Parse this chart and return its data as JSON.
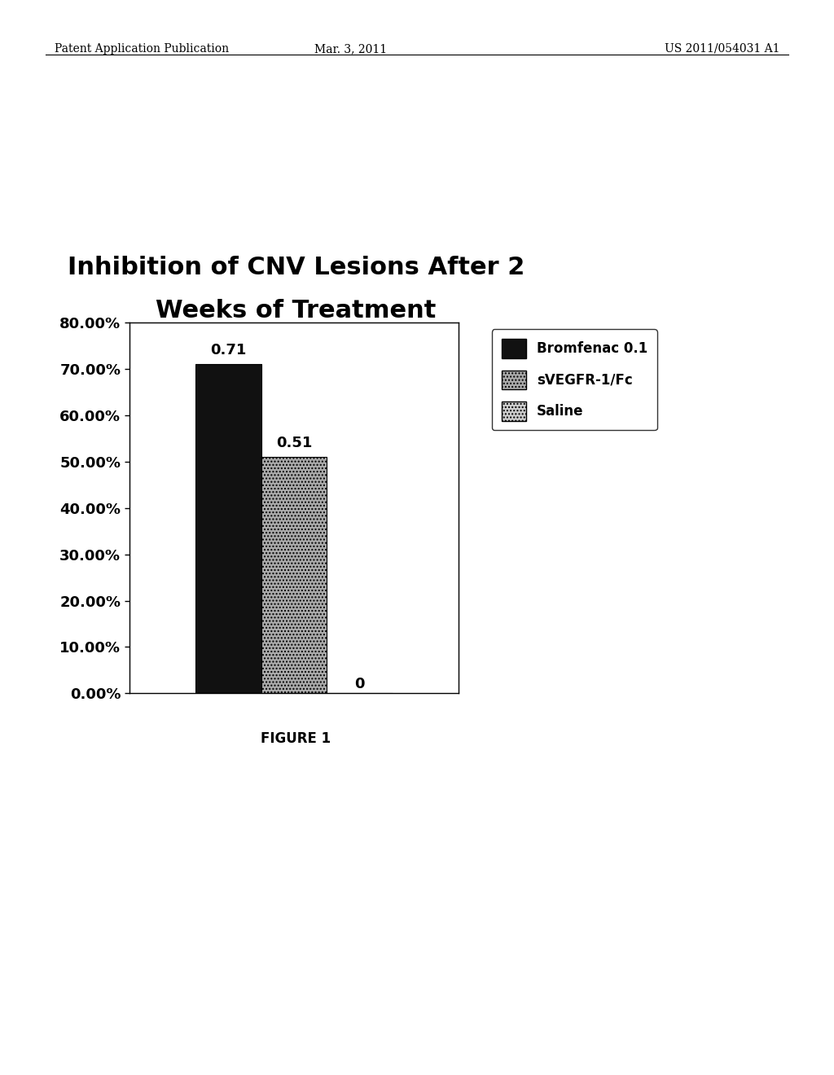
{
  "title_line1": "Inhibition of CNV Lesions After 2",
  "title_line2": "Weeks of Treatment",
  "title_fontsize": 22,
  "title_fontweight": "bold",
  "figure_caption": "FIGURE 1",
  "header_left": "Patent Application Publication",
  "header_center": "Mar. 3, 2011",
  "header_right": "US 2011/054031 A1",
  "bars": [
    {
      "label": "Bromfenac 0.1",
      "value": 0.71,
      "color": "#111111",
      "hatch": null
    },
    {
      "label": "sVEGFR-1/Fc",
      "value": 0.51,
      "color": "#aaaaaa",
      "hatch": "...."
    },
    {
      "label": "Saline",
      "value": 0.0,
      "color": "#cccccc",
      "hatch": "...."
    }
  ],
  "bar_annotations": [
    "0.71",
    "0.51",
    "0"
  ],
  "ylim": [
    0.0,
    0.8
  ],
  "yticks": [
    0.0,
    0.1,
    0.2,
    0.3,
    0.4,
    0.5,
    0.6,
    0.7,
    0.8
  ],
  "ytick_labels": [
    "0.00%",
    "10.00%",
    "20.00%",
    "30.00%",
    "40.00%",
    "50.00%",
    "60.00%",
    "70.00%",
    "80.00%"
  ],
  "background_color": "#ffffff",
  "bar_width": 0.05,
  "legend_fontsize": 12,
  "tick_fontsize": 13,
  "annotation_fontsize": 13,
  "header_fontsize": 10,
  "caption_fontsize": 12
}
